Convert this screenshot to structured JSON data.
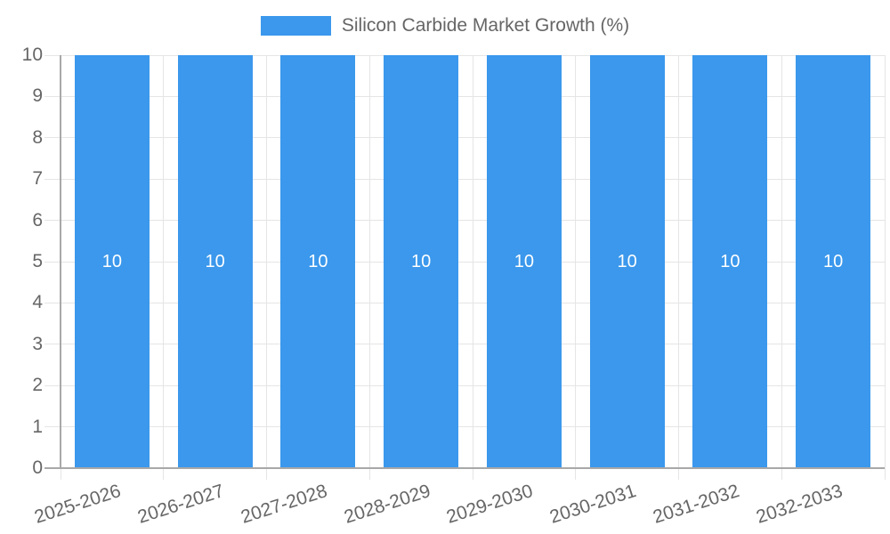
{
  "chart_data": {
    "type": "bar",
    "title": "",
    "categories": [
      "2025-2026",
      "2026-2027",
      "2027-2028",
      "2028-2029",
      "2029-2030",
      "2030-2031",
      "2031-2032",
      "2032-2033"
    ],
    "series": [
      {
        "name": "Silicon Carbide Market Growth (%)",
        "values": [
          10,
          10,
          10,
          10,
          10,
          10,
          10,
          10
        ],
        "color": "#3B98EC"
      }
    ],
    "bar_value_labels": [
      "10",
      "10",
      "10",
      "10",
      "10",
      "10",
      "10",
      "10"
    ],
    "yticks": [
      0,
      1,
      2,
      3,
      4,
      5,
      6,
      7,
      8,
      9,
      10
    ],
    "ylim": [
      0,
      10
    ],
    "grid": true,
    "legend_position": "top",
    "colors": {
      "bar": "#3B98EC",
      "grid": "#E5E5E5",
      "axis": "#A8A8A8",
      "tick_text": "#666666",
      "bar_label_text": "#FFFFFF"
    }
  }
}
